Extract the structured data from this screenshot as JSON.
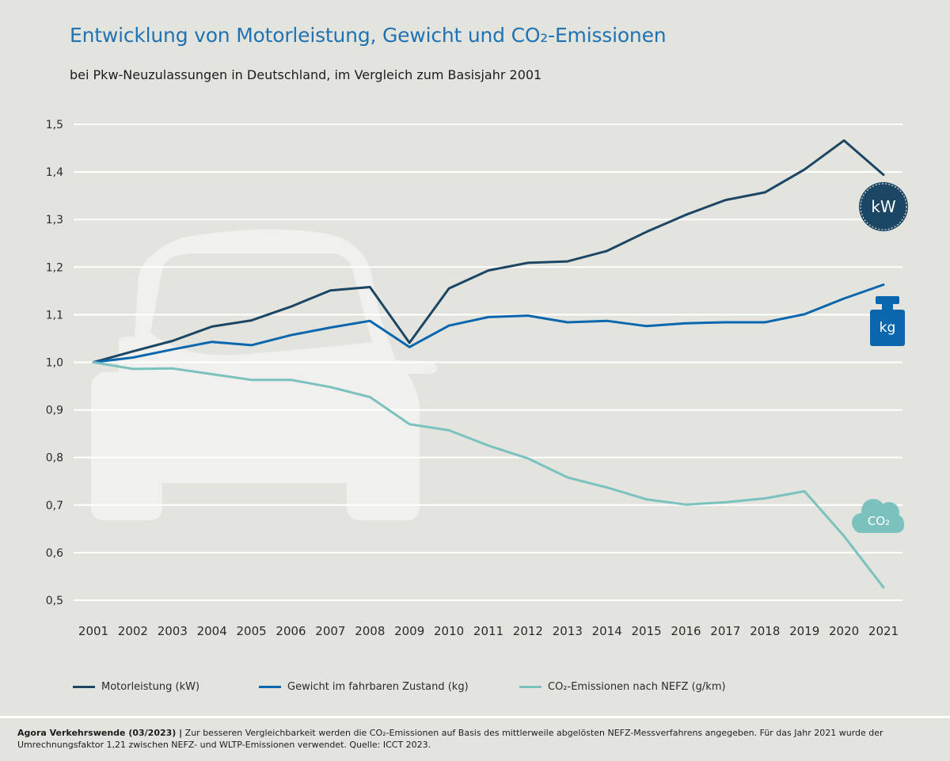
{
  "title": "Entwicklung von Motorleistung, Gewicht und CO₂-Emissionen",
  "subtitle": "bei Pkw-Neuzulassungen in Deutschland, im Vergleich zum Basisjahr 2001",
  "icons": {
    "kw": {
      "label": "kW",
      "name": "kw-badge-icon",
      "color": "#1b4664"
    },
    "kg": {
      "label": "kg",
      "name": "weight-icon",
      "color": "#0b67ad"
    },
    "co2": {
      "label": "CO₂",
      "name": "cloud-icon",
      "color": "#7bc2bf"
    },
    "car": {
      "name": "car-silhouette-icon",
      "color": "#f0f0ee"
    }
  },
  "legend": [
    {
      "label": "Motorleistung (kW)",
      "color": "#1b4664"
    },
    {
      "label": "Gewicht im fahrbaren Zustand (kg)",
      "color": "#0b67ad"
    },
    {
      "label": "CO₂-Emissionen nach NEFZ (g/km)",
      "color": "#7bc2bf"
    }
  ],
  "footer": {
    "source_bold": "Agora Verkehrswende (03/2023) |",
    "note": " Zur besseren Vergleichbarkeit werden die CO₂-Emissionen auf Basis des mittlerweile abgelösten NEFZ-Messverfahrens angegeben. Für das Jahr 2021 wurde der Umrechnungsfaktor 1,21 zwischen NEFZ- und WLTP-Emissionen verwendet. Quelle: ICCT 2023."
  },
  "chart_data": {
    "type": "line",
    "x": [
      "2001",
      "2002",
      "2003",
      "2004",
      "2005",
      "2006",
      "2007",
      "2008",
      "2009",
      "2010",
      "2011",
      "2012",
      "2013",
      "2014",
      "2015",
      "2016",
      "2017",
      "2018",
      "2019",
      "2020",
      "2021"
    ],
    "ylim": [
      0.5,
      1.5
    ],
    "yticks": [
      "0,5",
      "0,6",
      "0,7",
      "0,8",
      "0,9",
      "1,0",
      "1,1",
      "1,2",
      "1,3",
      "1,4",
      "1,5"
    ],
    "grid": true,
    "legend_position": "bottom",
    "series": [
      {
        "name": "Motorleistung (kW)",
        "color": "#1b4664",
        "values": [
          1.0,
          1.023,
          1.045,
          1.075,
          1.088,
          1.117,
          1.151,
          1.158,
          1.041,
          1.155,
          1.193,
          1.209,
          1.212,
          1.234,
          1.274,
          1.31,
          1.341,
          1.357,
          1.405,
          1.466,
          1.394
        ]
      },
      {
        "name": "Gewicht im fahrbaren Zustand (kg)",
        "color": "#0b67ad",
        "values": [
          1.0,
          1.01,
          1.027,
          1.043,
          1.036,
          1.057,
          1.073,
          1.087,
          1.032,
          1.077,
          1.095,
          1.098,
          1.084,
          1.087,
          1.076,
          1.082,
          1.084,
          1.084,
          1.101,
          1.134,
          1.163
        ]
      },
      {
        "name": "CO₂-Emissionen nach NEFZ (g/km)",
        "color": "#7bc2bf",
        "values": [
          1.0,
          0.986,
          0.987,
          0.975,
          0.963,
          0.963,
          0.948,
          0.927,
          0.87,
          0.857,
          0.825,
          0.798,
          0.758,
          0.737,
          0.712,
          0.701,
          0.706,
          0.714,
          0.729,
          0.635,
          0.527
        ]
      }
    ]
  }
}
